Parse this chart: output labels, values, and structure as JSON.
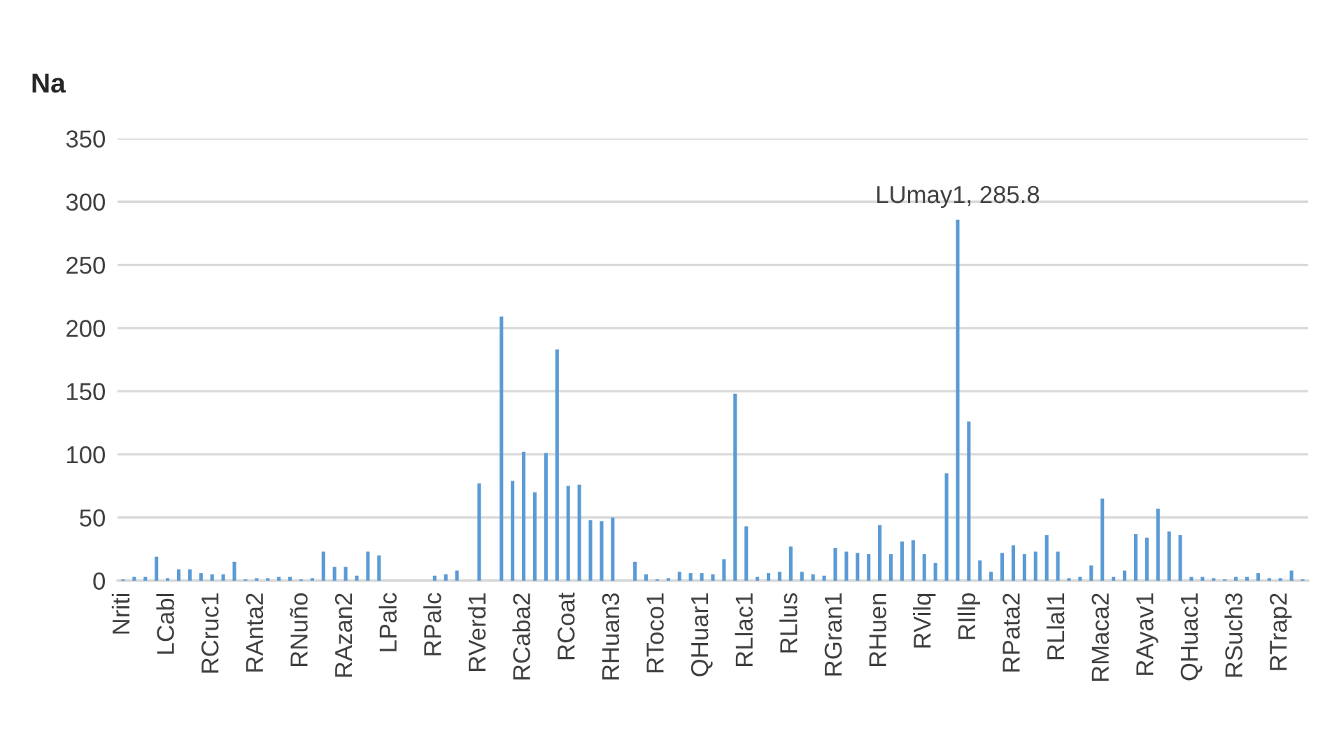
{
  "chart_data": {
    "type": "bar",
    "title": "Na",
    "categories": [
      "Nriti",
      null,
      null,
      null,
      "LCabl",
      null,
      null,
      null,
      "RCruc1",
      null,
      null,
      null,
      "RAnta2",
      null,
      null,
      null,
      "RNuño",
      null,
      null,
      null,
      "RAzan2",
      null,
      null,
      null,
      "LPalc",
      null,
      null,
      null,
      "RPalc",
      null,
      null,
      null,
      "RVerd1",
      null,
      null,
      null,
      "RCaba2",
      null,
      null,
      null,
      "RCoat",
      null,
      null,
      null,
      "RHuan3",
      null,
      null,
      null,
      "RToco1",
      null,
      null,
      null,
      "QHuar1",
      null,
      null,
      null,
      "RLlac1",
      null,
      null,
      null,
      "RLlus",
      null,
      null,
      null,
      "RGran1",
      null,
      null,
      null,
      "RHuen",
      null,
      null,
      null,
      "RVilq",
      null,
      null,
      null,
      "RIllp",
      null,
      null,
      null,
      "RPata2",
      null,
      null,
      null,
      "RLlal1",
      null,
      null,
      null,
      "RMaca2",
      null,
      null,
      null,
      "RAyav1",
      null,
      null,
      null,
      "QHuac1",
      null,
      null,
      null,
      "RSuch3",
      null,
      null,
      null,
      "RTrap2",
      null,
      null
    ],
    "values": [
      1,
      3,
      3,
      19,
      2,
      9,
      9,
      6,
      5,
      5,
      15,
      1,
      2,
      2,
      3,
      3,
      1,
      2,
      23,
      11,
      11,
      4,
      23,
      20,
      null,
      null,
      null,
      null,
      4,
      5,
      8,
      null,
      77,
      null,
      209,
      79,
      102,
      70,
      101,
      183,
      75,
      76,
      48,
      47,
      50,
      null,
      15,
      5,
      1,
      2,
      7,
      6,
      6,
      5,
      17,
      148,
      43,
      3,
      6,
      7,
      27,
      7,
      5,
      4,
      26,
      23,
      22,
      21,
      44,
      21,
      31,
      32,
      21,
      14,
      85,
      285.8,
      126,
      16,
      7,
      22,
      28,
      21,
      23,
      36,
      23,
      2,
      3,
      12,
      65,
      3,
      8,
      37,
      34,
      57,
      39,
      36,
      3,
      3,
      2,
      1,
      3,
      3,
      6,
      2,
      2,
      8,
      1
    ],
    "color": "#5b9bd5",
    "ylim": [
      0,
      350
    ],
    "yticks": [
      0,
      50,
      100,
      150,
      200,
      250,
      300,
      350
    ],
    "grid": "y",
    "annotations": [
      {
        "text": "LUmay1, 285.8",
        "y": 285.8
      }
    ]
  }
}
